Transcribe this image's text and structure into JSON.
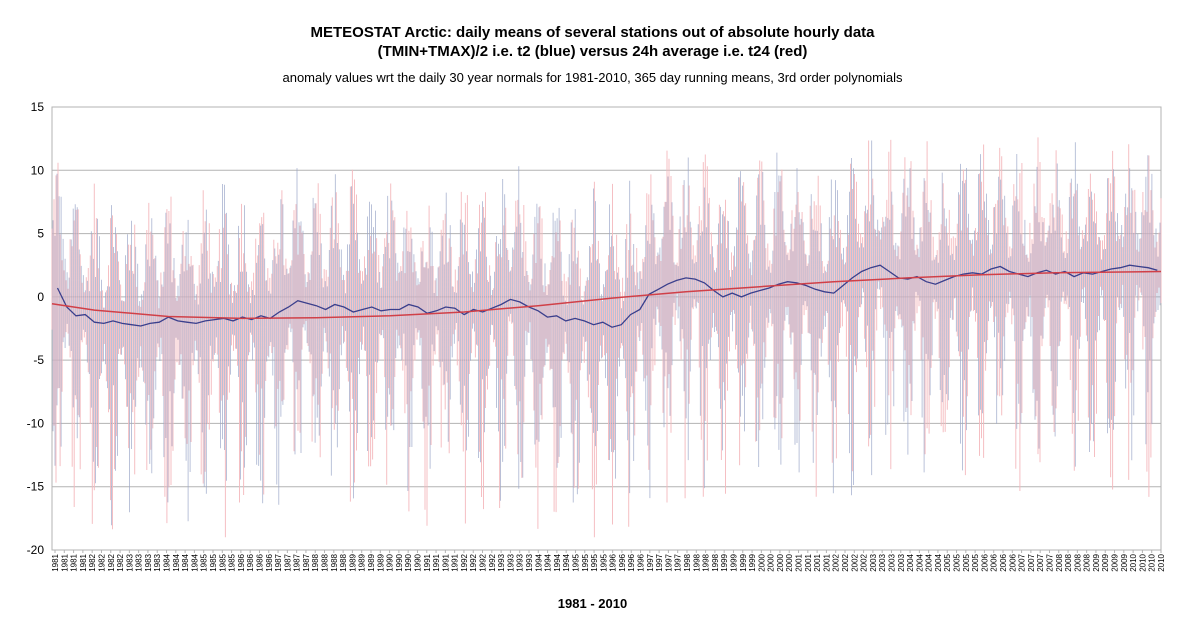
{
  "chart_data": {
    "type": "line",
    "title": "METEOSTAT Arctic: daily means of several stations out of absolute hourly data",
    "title_line2": "(TMIN+TMAX)/2 i.e. t2 (blue) versus 24h average i.e. t24 (red)",
    "subtitle": "anomaly values wrt the daily 30 year normals for 1981-2010, 365 day running means, 3rd order polynomials",
    "xlabel": "1981 - 2010",
    "ylabel": "",
    "ylim": [
      -20,
      15
    ],
    "yticks": [
      15,
      10,
      5,
      0,
      -5,
      -10,
      -15,
      -20
    ],
    "grid": true,
    "colors": {
      "t2_daily": "#9aa6c8",
      "t24_daily": "#f4b8bc",
      "running_mean": "#3b3f8c",
      "polynomial": "#d04048"
    },
    "xticks": [
      "1981",
      "1981",
      "1981",
      "1981",
      "1982",
      "1982",
      "1982",
      "1982",
      "1983",
      "1983",
      "1983",
      "1983",
      "1984",
      "1984",
      "1984",
      "1984",
      "1985",
      "1985",
      "1985",
      "1985",
      "1986",
      "1986",
      "1986",
      "1986",
      "1987",
      "1987",
      "1987",
      "1987",
      "1988",
      "1988",
      "1988",
      "1988",
      "1989",
      "1989",
      "1989",
      "1989",
      "1990",
      "1990",
      "1990",
      "1990",
      "1991",
      "1991",
      "1991",
      "1991",
      "1992",
      "1992",
      "1992",
      "1992",
      "1993",
      "1993",
      "1993",
      "1993",
      "1994",
      "1994",
      "1994",
      "1994",
      "1995",
      "1995",
      "1995",
      "1995",
      "1996",
      "1996",
      "1996",
      "1996",
      "1997",
      "1997",
      "1997",
      "1997",
      "1998",
      "1998",
      "1998",
      "1998",
      "1999",
      "1999",
      "1999",
      "1999",
      "2000",
      "2000",
      "2000",
      "2000",
      "2001",
      "2001",
      "2001",
      "2001",
      "2002",
      "2002",
      "2002",
      "2002",
      "2003",
      "2003",
      "2003",
      "2003",
      "2004",
      "2004",
      "2004",
      "2004",
      "2005",
      "2005",
      "2005",
      "2005",
      "2006",
      "2006",
      "2006",
      "2006",
      "2007",
      "2007",
      "2007",
      "2007",
      "2008",
      "2008",
      "2008",
      "2008",
      "2009",
      "2009",
      "2009",
      "2009",
      "2010",
      "2010",
      "2010",
      "2010"
    ],
    "series": [
      {
        "name": "365 day running mean",
        "x": [
          1981.0,
          1981.25,
          1981.5,
          1981.75,
          1982.0,
          1982.25,
          1982.5,
          1982.75,
          1983.0,
          1983.25,
          1983.5,
          1983.75,
          1984.0,
          1984.25,
          1984.5,
          1984.75,
          1985.0,
          1985.25,
          1985.5,
          1985.75,
          1986.0,
          1986.25,
          1986.5,
          1986.75,
          1987.0,
          1987.25,
          1987.5,
          1987.75,
          1988.0,
          1988.25,
          1988.5,
          1988.75,
          1989.0,
          1989.25,
          1989.5,
          1989.75,
          1990.0,
          1990.25,
          1990.5,
          1990.75,
          1991.0,
          1991.25,
          1991.5,
          1991.75,
          1992.0,
          1992.25,
          1992.5,
          1992.75,
          1993.0,
          1993.25,
          1993.5,
          1993.75,
          1994.0,
          1994.25,
          1994.5,
          1994.75,
          1995.0,
          1995.25,
          1995.5,
          1995.75,
          1996.0,
          1996.25,
          1996.5,
          1996.75,
          1997.0,
          1997.25,
          1997.5,
          1997.75,
          1998.0,
          1998.25,
          1998.5,
          1998.75,
          1999.0,
          1999.25,
          1999.5,
          1999.75,
          2000.0,
          2000.25,
          2000.5,
          2000.75,
          2001.0,
          2001.25,
          2001.5,
          2001.75,
          2002.0,
          2002.25,
          2002.5,
          2002.75,
          2003.0,
          2003.25,
          2003.5,
          2003.75,
          2004.0,
          2004.25,
          2004.5,
          2004.75,
          2005.0,
          2005.25,
          2005.5,
          2005.75,
          2006.0,
          2006.25,
          2006.5,
          2006.75,
          2007.0,
          2007.25,
          2007.5,
          2007.75,
          2008.0,
          2008.25,
          2008.5,
          2008.75,
          2009.0,
          2009.25,
          2009.5,
          2009.75,
          2010.0,
          2010.25,
          2010.5,
          2010.75
        ],
        "values": [
          0.7,
          -0.8,
          -1.5,
          -1.4,
          -2.0,
          -2.1,
          -1.9,
          -2.1,
          -2.2,
          -2.3,
          -2.1,
          -2.0,
          -1.6,
          -1.9,
          -2.0,
          -2.1,
          -1.9,
          -1.8,
          -1.7,
          -1.9,
          -1.6,
          -1.8,
          -1.5,
          -1.7,
          -1.2,
          -0.8,
          -0.3,
          -0.5,
          -0.7,
          -1.0,
          -0.6,
          -0.8,
          -1.2,
          -1.0,
          -0.8,
          -1.1,
          -1.0,
          -1.0,
          -0.6,
          -0.8,
          -1.3,
          -1.1,
          -0.8,
          -0.9,
          -1.4,
          -1.0,
          -1.2,
          -0.9,
          -0.6,
          -0.2,
          -0.4,
          -0.8,
          -1.1,
          -1.6,
          -1.5,
          -1.9,
          -1.7,
          -1.9,
          -2.2,
          -2.0,
          -2.4,
          -2.2,
          -1.4,
          -1.0,
          0.2,
          0.6,
          1.0,
          1.3,
          1.5,
          1.4,
          1.1,
          0.5,
          0.0,
          0.3,
          0.0,
          0.3,
          0.5,
          0.7,
          1.0,
          1.2,
          1.1,
          0.9,
          0.6,
          0.4,
          0.3,
          0.9,
          1.5,
          2.0,
          2.3,
          2.5,
          2.0,
          1.5,
          1.4,
          1.6,
          1.2,
          1.0,
          1.3,
          1.6,
          1.8,
          1.9,
          1.8,
          2.2,
          2.4,
          2.0,
          1.8,
          1.6,
          1.9,
          2.1,
          1.8,
          2.0,
          1.6,
          1.9,
          1.8,
          2.0,
          2.2,
          2.3,
          2.5,
          2.4,
          2.3,
          2.1
        ]
      },
      {
        "name": "3rd order polynomial",
        "x": [
          1980.85,
          1982.0,
          1984.0,
          1986.0,
          1988.0,
          1990.0,
          1991.0,
          1992.0,
          1994.0,
          1996.0,
          1998.0,
          2000.0,
          2002.0,
          2004.0,
          2006.0,
          2008.0,
          2010.85
        ],
        "values": [
          -0.55,
          -1.05,
          -1.55,
          -1.7,
          -1.65,
          -1.5,
          -1.35,
          -1.2,
          -0.7,
          -0.1,
          0.4,
          0.8,
          1.2,
          1.5,
          1.75,
          1.9,
          2.0
        ]
      }
    ]
  }
}
